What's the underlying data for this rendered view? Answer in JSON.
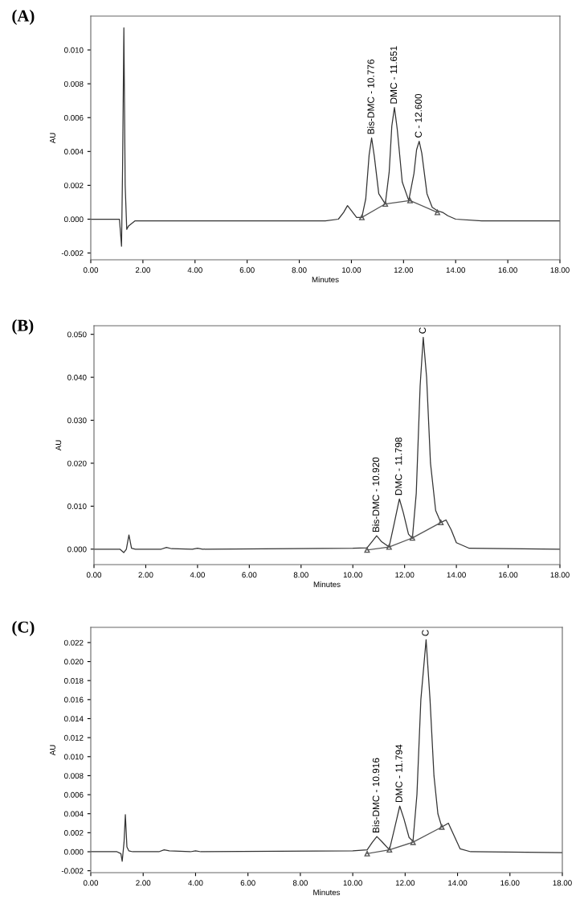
{
  "chart_data": [
    {
      "type": "line",
      "title": "(A)",
      "xlabel": "Minutes",
      "ylabel": "AU",
      "xlim": [
        0,
        18
      ],
      "xticks": [
        {
          "value": 0,
          "label": "0.00"
        },
        {
          "value": 2,
          "label": "2.00"
        },
        {
          "value": 4,
          "label": "4.00"
        },
        {
          "value": 6,
          "label": "6.00"
        },
        {
          "value": 8,
          "label": "8.00"
        },
        {
          "value": 10,
          "label": "10.00"
        },
        {
          "value": 12,
          "label": "12.00"
        },
        {
          "value": 14,
          "label": "14.00"
        },
        {
          "value": 16,
          "label": "16.00"
        },
        {
          "value": 18,
          "label": "18.00"
        }
      ],
      "ylim": [
        -0.0024,
        0.012
      ],
      "yticks": [
        {
          "value": -0.002,
          "label": "-0.002"
        },
        {
          "value": 0,
          "label": "0.000"
        },
        {
          "value": 0.002,
          "label": "0.002"
        },
        {
          "value": 0.004,
          "label": "0.004"
        },
        {
          "value": 0.006,
          "label": "0.006"
        },
        {
          "value": 0.008,
          "label": "0.008"
        },
        {
          "value": 0.01,
          "label": "0.010"
        }
      ],
      "series": [
        {
          "color": "#333333",
          "marker": "none",
          "x": [
            0,
            0.5,
            1.0,
            1.1,
            1.18,
            1.22,
            1.27,
            1.32,
            1.38,
            1.45,
            1.7,
            3,
            6,
            9.0,
            9.5,
            9.7,
            9.85,
            10.0,
            10.2,
            10.4,
            10.55,
            10.68,
            10.776,
            10.88,
            11.05,
            11.3,
            11.45,
            11.55,
            11.651,
            11.76,
            11.95,
            12.2,
            12.4,
            12.5,
            12.6,
            12.7,
            12.9,
            13.1,
            13.3,
            13.5,
            13.7,
            14.0,
            15,
            18
          ],
          "values": [
            0,
            0,
            0,
            0,
            -0.0016,
            0.003,
            0.0113,
            0.002,
            -0.0006,
            -0.0004,
            -0.0001,
            -0.0001,
            -0.0001,
            -0.0001,
            0.0,
            0.0004,
            0.0008,
            0.0005,
            0.0001,
            0.0001,
            0.0012,
            0.0038,
            0.0048,
            0.0037,
            0.0015,
            0.0009,
            0.0028,
            0.0055,
            0.0066,
            0.0053,
            0.0022,
            0.0011,
            0.0027,
            0.0041,
            0.0046,
            0.0039,
            0.0015,
            0.0007,
            0.0005,
            0.0004,
            0.0002,
            0.0,
            -0.0001,
            -0.0001
          ]
        },
        {
          "color": "#555555",
          "marker": "triangle",
          "x": [
            10.4,
            11.3,
            12.25,
            13.3
          ],
          "values": [
            0.0001,
            0.0009,
            0.0011,
            0.0004
          ]
        }
      ],
      "annotations": [
        {
          "text": "Bis-DMC - 10.776",
          "x": 10.776,
          "y": 0.0048
        },
        {
          "text": "DMC - 11.651",
          "x": 11.651,
          "y": 0.0066
        },
        {
          "text": "C - 12.600",
          "x": 12.6,
          "y": 0.0046
        }
      ]
    },
    {
      "type": "line",
      "title": "(B)",
      "xlabel": "Minutes",
      "ylabel": "AU",
      "xlim": [
        0,
        18
      ],
      "xticks": [
        {
          "value": 0,
          "label": "0.00"
        },
        {
          "value": 2,
          "label": "2.00"
        },
        {
          "value": 4,
          "label": "4.00"
        },
        {
          "value": 6,
          "label": "6.00"
        },
        {
          "value": 8,
          "label": "8.00"
        },
        {
          "value": 10,
          "label": "10.00"
        },
        {
          "value": 12,
          "label": "12.00"
        },
        {
          "value": 14,
          "label": "14.00"
        },
        {
          "value": 16,
          "label": "16.00"
        },
        {
          "value": 18,
          "label": "18.00"
        }
      ],
      "ylim": [
        -0.0036,
        0.052
      ],
      "yticks": [
        {
          "value": 0,
          "label": "0.000"
        },
        {
          "value": 0.01,
          "label": "0.010"
        },
        {
          "value": 0.02,
          "label": "0.020"
        },
        {
          "value": 0.03,
          "label": "0.030"
        },
        {
          "value": 0.04,
          "label": "0.040"
        },
        {
          "value": 0.05,
          "label": "0.050"
        }
      ],
      "series": [
        {
          "color": "#333333",
          "marker": "none",
          "x": [
            0,
            1.0,
            1.15,
            1.25,
            1.35,
            1.45,
            1.6,
            2.6,
            2.8,
            3.0,
            3.8,
            4.0,
            4.2,
            10.0,
            10.55,
            10.75,
            10.92,
            11.1,
            11.4,
            11.6,
            11.798,
            11.95,
            12.15,
            12.3,
            12.45,
            12.6,
            12.72,
            12.85,
            13.0,
            13.2,
            13.4,
            13.6,
            13.8,
            14.0,
            14.5,
            18
          ],
          "values": [
            0,
            0,
            -0.0008,
            0.0,
            0.0033,
            0.0002,
            0,
            0,
            0.0004,
            0.0001,
            0,
            0.0002,
            0,
            0.0002,
            0.0003,
            0.0018,
            0.0031,
            0.0018,
            0.0005,
            0.006,
            0.0117,
            0.0085,
            0.0035,
            0.0025,
            0.013,
            0.038,
            0.0493,
            0.04,
            0.02,
            0.009,
            0.0062,
            0.0068,
            0.0045,
            0.0015,
            0.0002,
            0.0
          ]
        },
        {
          "color": "#555555",
          "marker": "triangle",
          "x": [
            10.55,
            11.4,
            12.3,
            13.4
          ],
          "values": [
            -0.0002,
            0.0005,
            0.0026,
            0.0062
          ]
        }
      ],
      "annotations": [
        {
          "text": "Bis-DMC - 10.920",
          "x": 10.92,
          "y": 0.0031
        },
        {
          "text": "DMC - 11.798",
          "x": 11.798,
          "y": 0.0117
        },
        {
          "text": "C",
          "x": 12.72,
          "y": 0.0493
        }
      ]
    },
    {
      "type": "line",
      "title": "(C)",
      "xlabel": "Minutes",
      "ylabel": "AU",
      "xlim": [
        0,
        18
      ],
      "xticks": [
        {
          "value": 0,
          "label": "0.00"
        },
        {
          "value": 2,
          "label": "2.00"
        },
        {
          "value": 4,
          "label": "4.00"
        },
        {
          "value": 6,
          "label": "6.00"
        },
        {
          "value": 8,
          "label": "8.00"
        },
        {
          "value": 10,
          "label": "10.00"
        },
        {
          "value": 12,
          "label": "12.00"
        },
        {
          "value": 14,
          "label": "14.00"
        },
        {
          "value": 16,
          "label": "16.00"
        },
        {
          "value": 18,
          "label": "18.00"
        }
      ],
      "ylim": [
        -0.0022,
        0.0236
      ],
      "yticks": [
        {
          "value": -0.002,
          "label": "-0.002"
        },
        {
          "value": 0,
          "label": "0.000"
        },
        {
          "value": 0.002,
          "label": "0.002"
        },
        {
          "value": 0.004,
          "label": "0.004"
        },
        {
          "value": 0.006,
          "label": "0.006"
        },
        {
          "value": 0.008,
          "label": "0.008"
        },
        {
          "value": 0.01,
          "label": "0.010"
        },
        {
          "value": 0.012,
          "label": "0.012"
        },
        {
          "value": 0.014,
          "label": "0.014"
        },
        {
          "value": 0.016,
          "label": "0.016"
        },
        {
          "value": 0.018,
          "label": "0.018"
        },
        {
          "value": 0.02,
          "label": "0.020"
        },
        {
          "value": 0.022,
          "label": "0.022"
        }
      ],
      "series": [
        {
          "color": "#333333",
          "marker": "none",
          "x": [
            0,
            1.0,
            1.15,
            1.2,
            1.27,
            1.32,
            1.38,
            1.45,
            1.6,
            2.6,
            2.8,
            3.0,
            3.8,
            4.0,
            4.2,
            10.0,
            10.55,
            10.75,
            10.92,
            11.1,
            11.4,
            11.6,
            11.794,
            11.95,
            12.15,
            12.3,
            12.45,
            12.6,
            12.8,
            12.95,
            13.1,
            13.25,
            13.4,
            13.65,
            13.85,
            14.1,
            14.5,
            18
          ],
          "values": [
            0,
            0,
            -0.0002,
            -0.001,
            0.001,
            0.0039,
            0.0005,
            0.0001,
            0,
            0,
            0.0002,
            0.0001,
            0,
            0.0001,
            0,
            0.0001,
            0.0002,
            0.001,
            0.0016,
            0.0011,
            0.0002,
            0.0025,
            0.0048,
            0.0035,
            0.0015,
            0.0011,
            0.006,
            0.016,
            0.0223,
            0.016,
            0.008,
            0.004,
            0.0026,
            0.003,
            0.0018,
            0.0003,
            0.0,
            -0.0001
          ]
        },
        {
          "color": "#555555",
          "marker": "triangle",
          "x": [
            10.55,
            11.4,
            12.3,
            13.4
          ],
          "values": [
            -0.0002,
            0.0002,
            0.001,
            0.0026
          ]
        }
      ],
      "annotations": [
        {
          "text": "Bis-DMC - 10.916",
          "x": 10.916,
          "y": 0.0016
        },
        {
          "text": "DMC - 11.794",
          "x": 11.794,
          "y": 0.0048
        },
        {
          "text": "C",
          "x": 12.8,
          "y": 0.0223
        }
      ]
    }
  ]
}
